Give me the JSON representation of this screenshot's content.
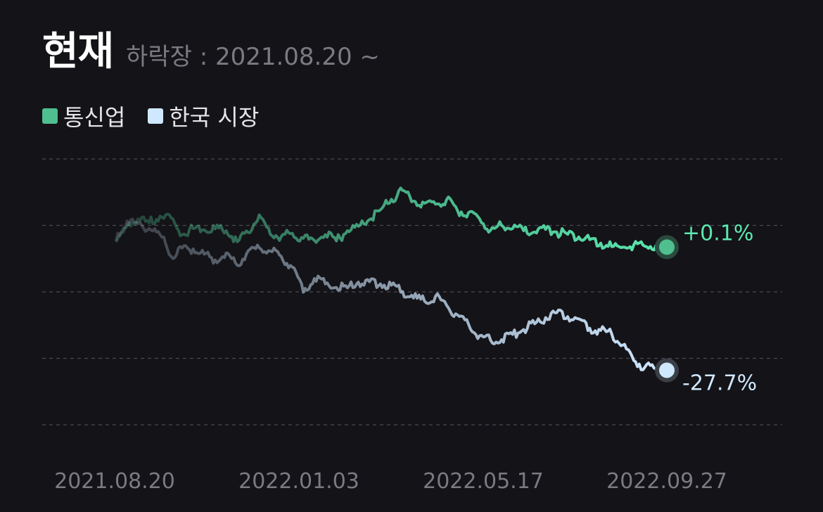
{
  "header": {
    "title": "현재",
    "subtitle": "하락장 : 2021.08.20 ~"
  },
  "legend": [
    {
      "label": "통신업",
      "color": "#4fbf8f"
    },
    {
      "label": "한국 시장",
      "color": "#cfe8ff"
    }
  ],
  "chart_data": {
    "type": "line",
    "title": "",
    "xlabel": "",
    "ylabel": "",
    "x_tick_labels": [
      "2021.08.20",
      "2022.01.03",
      "2022.05.17",
      "2022.09.27"
    ],
    "ylim": [
      -40,
      20
    ],
    "grid": true,
    "series": [
      {
        "name": "통신업",
        "color": "#5ce8b0",
        "end_label": "+0.1%",
        "end_value": 0.1,
        "x": [
          0,
          0.02,
          0.04,
          0.06,
          0.08,
          0.1,
          0.12,
          0.14,
          0.16,
          0.18,
          0.2,
          0.22,
          0.24,
          0.26,
          0.28,
          0.3,
          0.32,
          0.34,
          0.36,
          0.38,
          0.4,
          0.42,
          0.44,
          0.46,
          0.48,
          0.5,
          0.52,
          0.54,
          0.56,
          0.58,
          0.6,
          0.62,
          0.64,
          0.66,
          0.68,
          0.7,
          0.72,
          0.74,
          0.76,
          0.78,
          0.8,
          0.82,
          0.84,
          0.86,
          0.88,
          0.9,
          0.92,
          0.94,
          0.96,
          0.98,
          1.0
        ],
        "values": [
          1.2,
          4.8,
          6.5,
          5.6,
          7.1,
          6.7,
          2.9,
          4.3,
          4.0,
          4.2,
          3.8,
          1.3,
          3.4,
          7.4,
          3.0,
          2.5,
          3.2,
          2.1,
          1.6,
          2.9,
          1.5,
          3.8,
          4.8,
          6.3,
          8.5,
          10.9,
          12.9,
          10.5,
          10.0,
          9.8,
          10.8,
          8.3,
          7.9,
          6.5,
          3.9,
          5.0,
          4.3,
          3.8,
          3.5,
          4.1,
          3.5,
          3.0,
          2.4,
          1.8,
          1.0,
          0.2,
          0.1,
          0.6,
          0.3,
          0.4,
          0.1
        ]
      },
      {
        "name": "한국 시장",
        "color": "#cfe8ff",
        "end_label": "-27.7%",
        "end_value": -27.7,
        "x": [
          0,
          0.02,
          0.04,
          0.06,
          0.08,
          0.1,
          0.12,
          0.14,
          0.16,
          0.18,
          0.2,
          0.22,
          0.24,
          0.26,
          0.28,
          0.3,
          0.32,
          0.34,
          0.36,
          0.38,
          0.4,
          0.42,
          0.44,
          0.46,
          0.48,
          0.5,
          0.52,
          0.54,
          0.56,
          0.58,
          0.6,
          0.62,
          0.64,
          0.66,
          0.68,
          0.7,
          0.72,
          0.74,
          0.76,
          0.78,
          0.8,
          0.82,
          0.84,
          0.86,
          0.88,
          0.9,
          0.92,
          0.94,
          0.96,
          0.98,
          1.0
        ],
        "values": [
          1.5,
          6.0,
          5.4,
          4.3,
          2.9,
          -2.0,
          -0.1,
          -0.3,
          -1.5,
          -2.8,
          -1.2,
          -4.0,
          -0.7,
          -0.1,
          -0.8,
          -2.0,
          -4.4,
          -10.1,
          -7.0,
          -8.2,
          -9.0,
          -9.1,
          -7.8,
          -7.7,
          -8.2,
          -8.5,
          -9.9,
          -11.4,
          -12.1,
          -11.0,
          -13.0,
          -15.2,
          -17.3,
          -19.9,
          -20.9,
          -20.8,
          -19.6,
          -18.5,
          -17.2,
          -15.8,
          -14.7,
          -15.6,
          -16.1,
          -18.2,
          -18.7,
          -19.5,
          -22.0,
          -25.5,
          -27.0,
          -27.4,
          -27.7
        ]
      }
    ]
  }
}
